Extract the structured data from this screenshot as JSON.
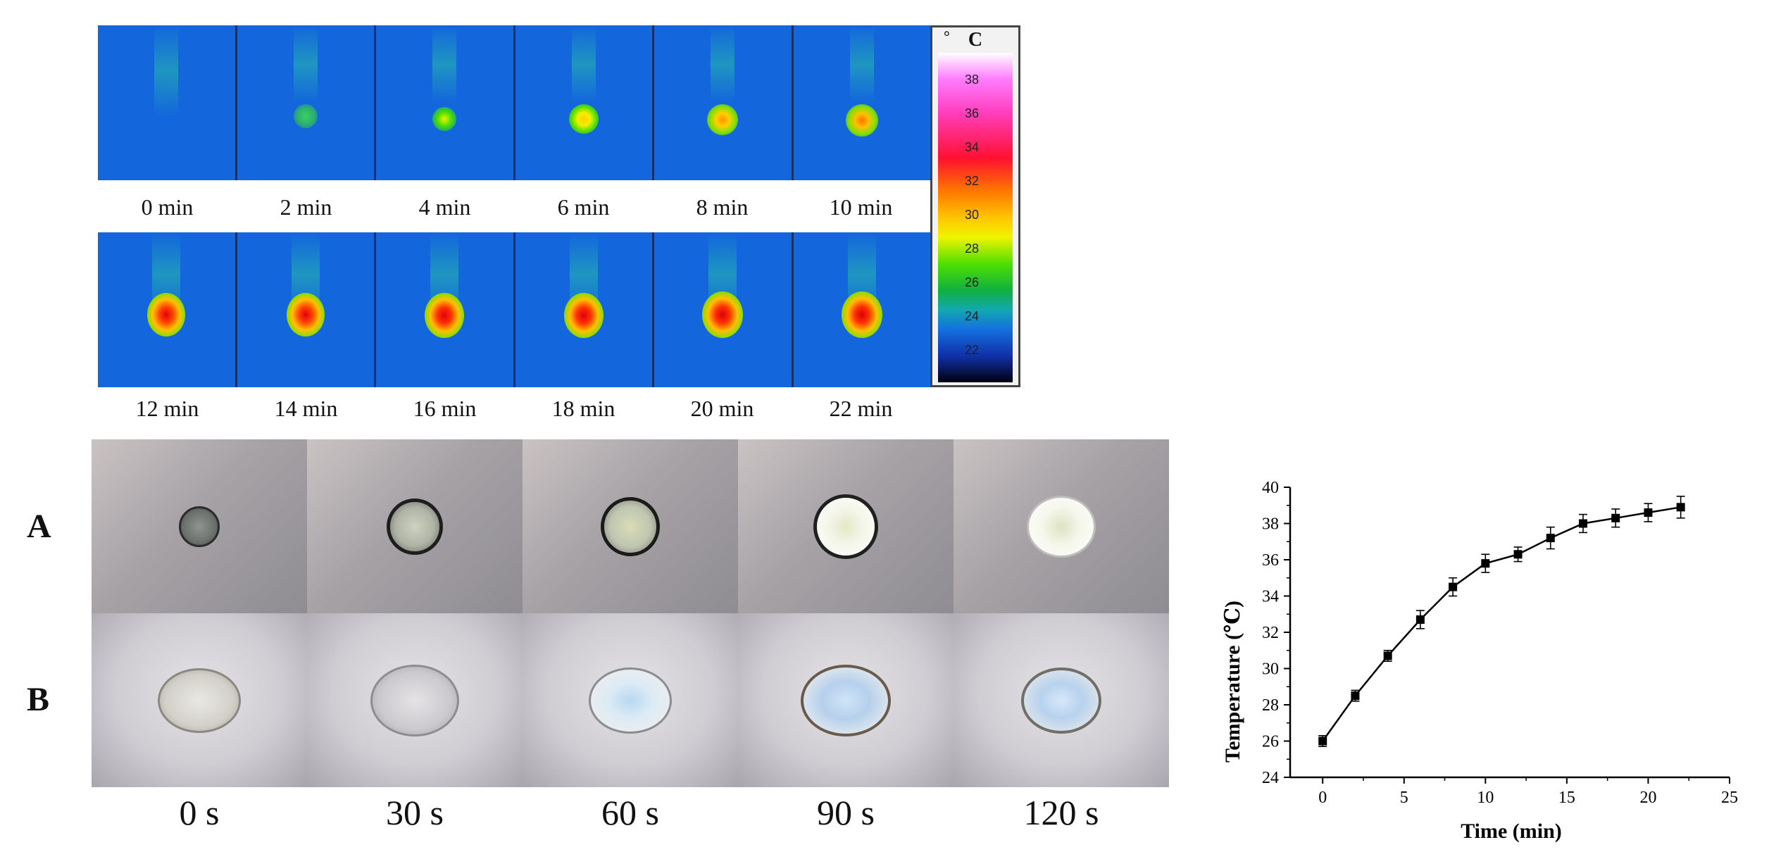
{
  "thermal": {
    "row1_labels": [
      "0 min",
      "2 min",
      "4 min",
      "6 min",
      "8 min",
      "10 min"
    ],
    "row2_labels": [
      "12 min",
      "14 min",
      "16 min",
      "18 min",
      "20 min",
      "22 min"
    ],
    "scale_unit": "C",
    "scale_ticks": [
      "38",
      "36",
      "34",
      "32",
      "30",
      "28",
      "26",
      "24",
      "22"
    ]
  },
  "photos": {
    "row_labels": [
      "A",
      "B"
    ],
    "time_labels": [
      "0 s",
      "30 s",
      "60 s",
      "90 s",
      "120 s"
    ]
  },
  "chart_data": {
    "type": "line",
    "x": [
      0,
      2,
      4,
      6,
      8,
      10,
      12,
      14,
      16,
      18,
      20,
      22
    ],
    "series": [
      {
        "name": "Temperature",
        "values": [
          26.0,
          28.5,
          30.7,
          32.7,
          34.5,
          35.8,
          36.3,
          37.2,
          38.0,
          38.3,
          38.6,
          38.9
        ],
        "errors": [
          0.3,
          0.3,
          0.3,
          0.5,
          0.5,
          0.5,
          0.4,
          0.6,
          0.5,
          0.5,
          0.5,
          0.6
        ]
      }
    ],
    "title": "",
    "xlabel": "Time (min)",
    "ylabel": "Temperature (℃)",
    "xlim": [
      -2,
      25
    ],
    "ylim": [
      24,
      40
    ],
    "xticks": [
      "0",
      "5",
      "10",
      "15",
      "20",
      "25"
    ],
    "yticks": [
      "24",
      "26",
      "28",
      "30",
      "32",
      "34",
      "36",
      "38",
      "40"
    ],
    "grid": false,
    "marker": "square",
    "color": "#000000"
  }
}
